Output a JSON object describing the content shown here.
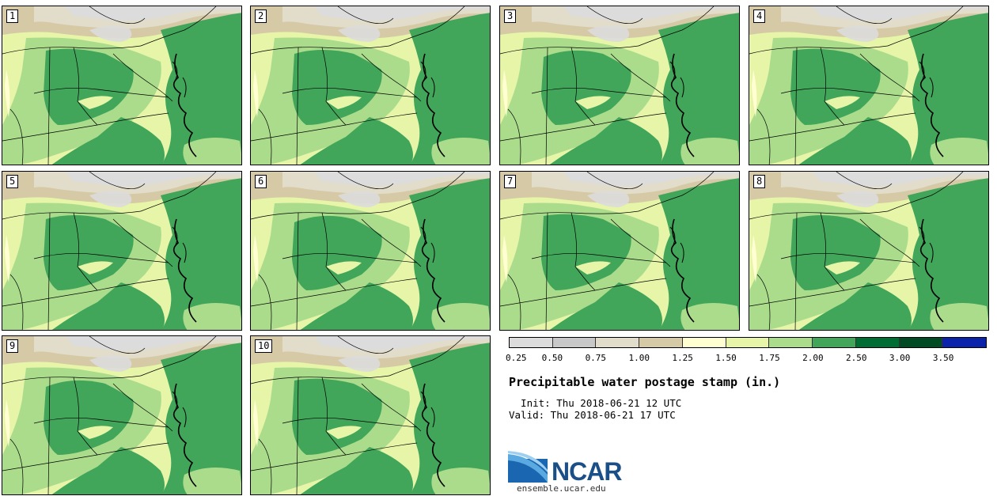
{
  "panels": [
    {
      "label": "1"
    },
    {
      "label": "2"
    },
    {
      "label": "3"
    },
    {
      "label": "4"
    },
    {
      "label": "5"
    },
    {
      "label": "6"
    },
    {
      "label": "7"
    },
    {
      "label": "8"
    },
    {
      "label": "9"
    },
    {
      "label": "10"
    }
  ],
  "colorbar": {
    "segments": [
      {
        "from": 0.25,
        "to": 0.5,
        "color": "#dcdcdc"
      },
      {
        "from": 0.5,
        "to": 0.75,
        "color": "#c8c8c8"
      },
      {
        "from": 0.75,
        "to": 1.0,
        "color": "#e2dccb"
      },
      {
        "from": 1.0,
        "to": 1.25,
        "color": "#d6c9a6"
      },
      {
        "from": 1.25,
        "to": 1.5,
        "color": "#ffffd2"
      },
      {
        "from": 1.5,
        "to": 1.75,
        "color": "#e6f5a8"
      },
      {
        "from": 1.75,
        "to": 2.0,
        "color": "#aadc8c"
      },
      {
        "from": 2.0,
        "to": 2.5,
        "color": "#41a55a"
      },
      {
        "from": 2.5,
        "to": 3.0,
        "color": "#006e32"
      },
      {
        "from": 3.0,
        "to": 3.5,
        "color": "#004b23"
      },
      {
        "from": 3.5,
        "to": null,
        "color": "#0a23aa"
      }
    ],
    "labels": [
      "0.25",
      "0.50",
      "0.75",
      "1.00",
      "1.25",
      "1.50",
      "1.75",
      "2.00",
      "2.50",
      "3.00",
      "3.50"
    ]
  },
  "title": "Precipitable water postage stamp (in.)",
  "init": "  Init: Thu 2018-06-21 12 UTC",
  "valid": "Valid: Thu 2018-06-21 17 UTC",
  "logo": {
    "name": "NCAR",
    "url": "ensemble.ucar.edu"
  }
}
